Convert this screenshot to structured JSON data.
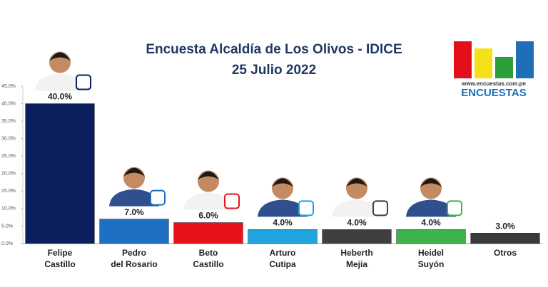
{
  "chart_data": {
    "type": "bar",
    "title": "Encuesta Alcaldía de Los Olivos - IDICE",
    "subtitle": "25 Julio 2022",
    "categories": [
      [
        "Felipe",
        "Castillo"
      ],
      [
        "Pedro",
        "del Rosario"
      ],
      [
        "Beto",
        "Castillo"
      ],
      [
        "Arturo",
        "Cutipa"
      ],
      [
        "Heberth",
        "Mejia"
      ],
      [
        "Heidel",
        "Suyón"
      ],
      [
        "Otros"
      ]
    ],
    "values": [
      40,
      7,
      6,
      4,
      4,
      4,
      3
    ],
    "value_labels": [
      "40.0%",
      "7.0%",
      "6.0%",
      "4.0%",
      "4.0%",
      "4.0%",
      "3.0%"
    ],
    "colors": [
      "#0b1f5e",
      "#1f6fc4",
      "#e8121b",
      "#1fa4e0",
      "#3f3f3f",
      "#3db24a",
      "#3a3a3a"
    ],
    "ylim": [
      0,
      45
    ],
    "yticks": [
      {
        "value": 0,
        "label": "0.0%"
      },
      {
        "value": 5,
        "label": "5.0%"
      },
      {
        "value": 10,
        "label": "10.0%"
      },
      {
        "value": 15,
        "label": "15.0%"
      },
      {
        "value": 20,
        "label": "20.0%"
      },
      {
        "value": 25,
        "label": "25.0%"
      },
      {
        "value": 30,
        "label": "30.0%"
      },
      {
        "value": 35,
        "label": "35.0%"
      },
      {
        "value": 40,
        "label": "40.0%"
      },
      {
        "value": 45,
        "label": "45.0%"
      }
    ],
    "grid": false
  },
  "logo": {
    "url": "www.encuestas.com.pe",
    "name": "ENCUESTAS"
  }
}
